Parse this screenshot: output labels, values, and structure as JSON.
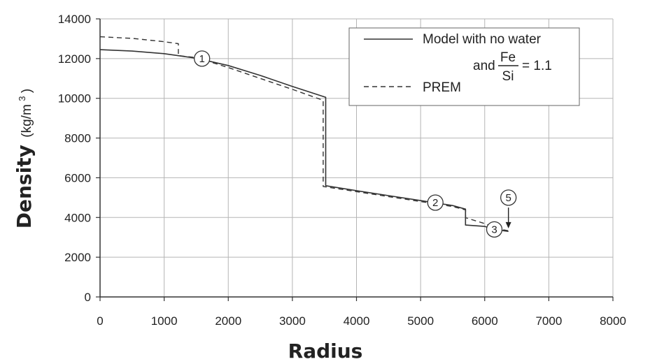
{
  "chart_data": {
    "type": "line",
    "xlabel": "Radius",
    "ylabel": "Density",
    "ylabel_unit_prefix": "(kg/m",
    "ylabel_unit_exp": "3",
    "ylabel_unit_suffix": ")",
    "xlim": [
      0,
      8000
    ],
    "ylim": [
      0,
      14000
    ],
    "x_ticks": [
      0,
      1000,
      2000,
      3000,
      4000,
      5000,
      6000,
      7000,
      8000
    ],
    "y_ticks": [
      0,
      2000,
      4000,
      6000,
      8000,
      10000,
      12000,
      14000
    ],
    "x_tick_labels": [
      "0",
      "1000",
      "2000",
      "3000",
      "4000",
      "5000",
      "6000",
      "7000",
      "8000"
    ],
    "y_tick_labels": [
      "0",
      "2000",
      "4000",
      "6000",
      "8000",
      "10000",
      "12000",
      "14000"
    ],
    "grid": true,
    "legend_position": "top-right",
    "legend": {
      "line1": "Model with no water",
      "line2_prefix": "and",
      "fraction_numerator": "Fe",
      "fraction_denominator": "Si",
      "fraction_suffix": "= 1.1",
      "dashed_label": "PREM"
    },
    "series": [
      {
        "name": "Model with no water and Fe/Si = 1.1",
        "style": "solid",
        "color": "#333333",
        "points": [
          [
            0,
            12450
          ],
          [
            500,
            12380
          ],
          [
            1000,
            12250
          ],
          [
            1500,
            12020
          ],
          [
            2000,
            11650
          ],
          [
            2500,
            11150
          ],
          [
            3000,
            10600
          ],
          [
            3520,
            10050
          ],
          [
            3520,
            5600
          ],
          [
            4000,
            5350
          ],
          [
            4500,
            5100
          ],
          [
            5000,
            4850
          ],
          [
            5500,
            4600
          ],
          [
            5700,
            4420
          ],
          [
            5700,
            3620
          ],
          [
            6000,
            3550
          ],
          [
            6150,
            3420
          ],
          [
            6300,
            3330
          ],
          [
            6371,
            3300
          ]
        ]
      },
      {
        "name": "PREM",
        "style": "dashed",
        "color": "#333333",
        "points": [
          [
            0,
            13100
          ],
          [
            500,
            13020
          ],
          [
            1000,
            12850
          ],
          [
            1221,
            12750
          ],
          [
            1221,
            12150
          ],
          [
            1500,
            12050
          ],
          [
            2000,
            11550
          ],
          [
            2500,
            11000
          ],
          [
            3000,
            10450
          ],
          [
            3480,
            9900
          ],
          [
            3480,
            5560
          ],
          [
            4000,
            5300
          ],
          [
            4500,
            5050
          ],
          [
            5000,
            4800
          ],
          [
            5500,
            4550
          ],
          [
            5701,
            4380
          ],
          [
            5701,
            3990
          ],
          [
            5971,
            3720
          ],
          [
            6151,
            3520
          ],
          [
            6291,
            3380
          ],
          [
            6371,
            3330
          ]
        ]
      }
    ],
    "annotations": [
      {
        "label": "1",
        "x": 1590,
        "y": 12000
      },
      {
        "label": "2",
        "x": 5230,
        "y": 4750
      },
      {
        "label": "3",
        "x": 6150,
        "y": 3400
      },
      {
        "label": "5",
        "x": 6370,
        "y": 5000
      }
    ],
    "arrow": {
      "from": [
        6370,
        4500
      ],
      "to": [
        6370,
        3450
      ]
    }
  }
}
